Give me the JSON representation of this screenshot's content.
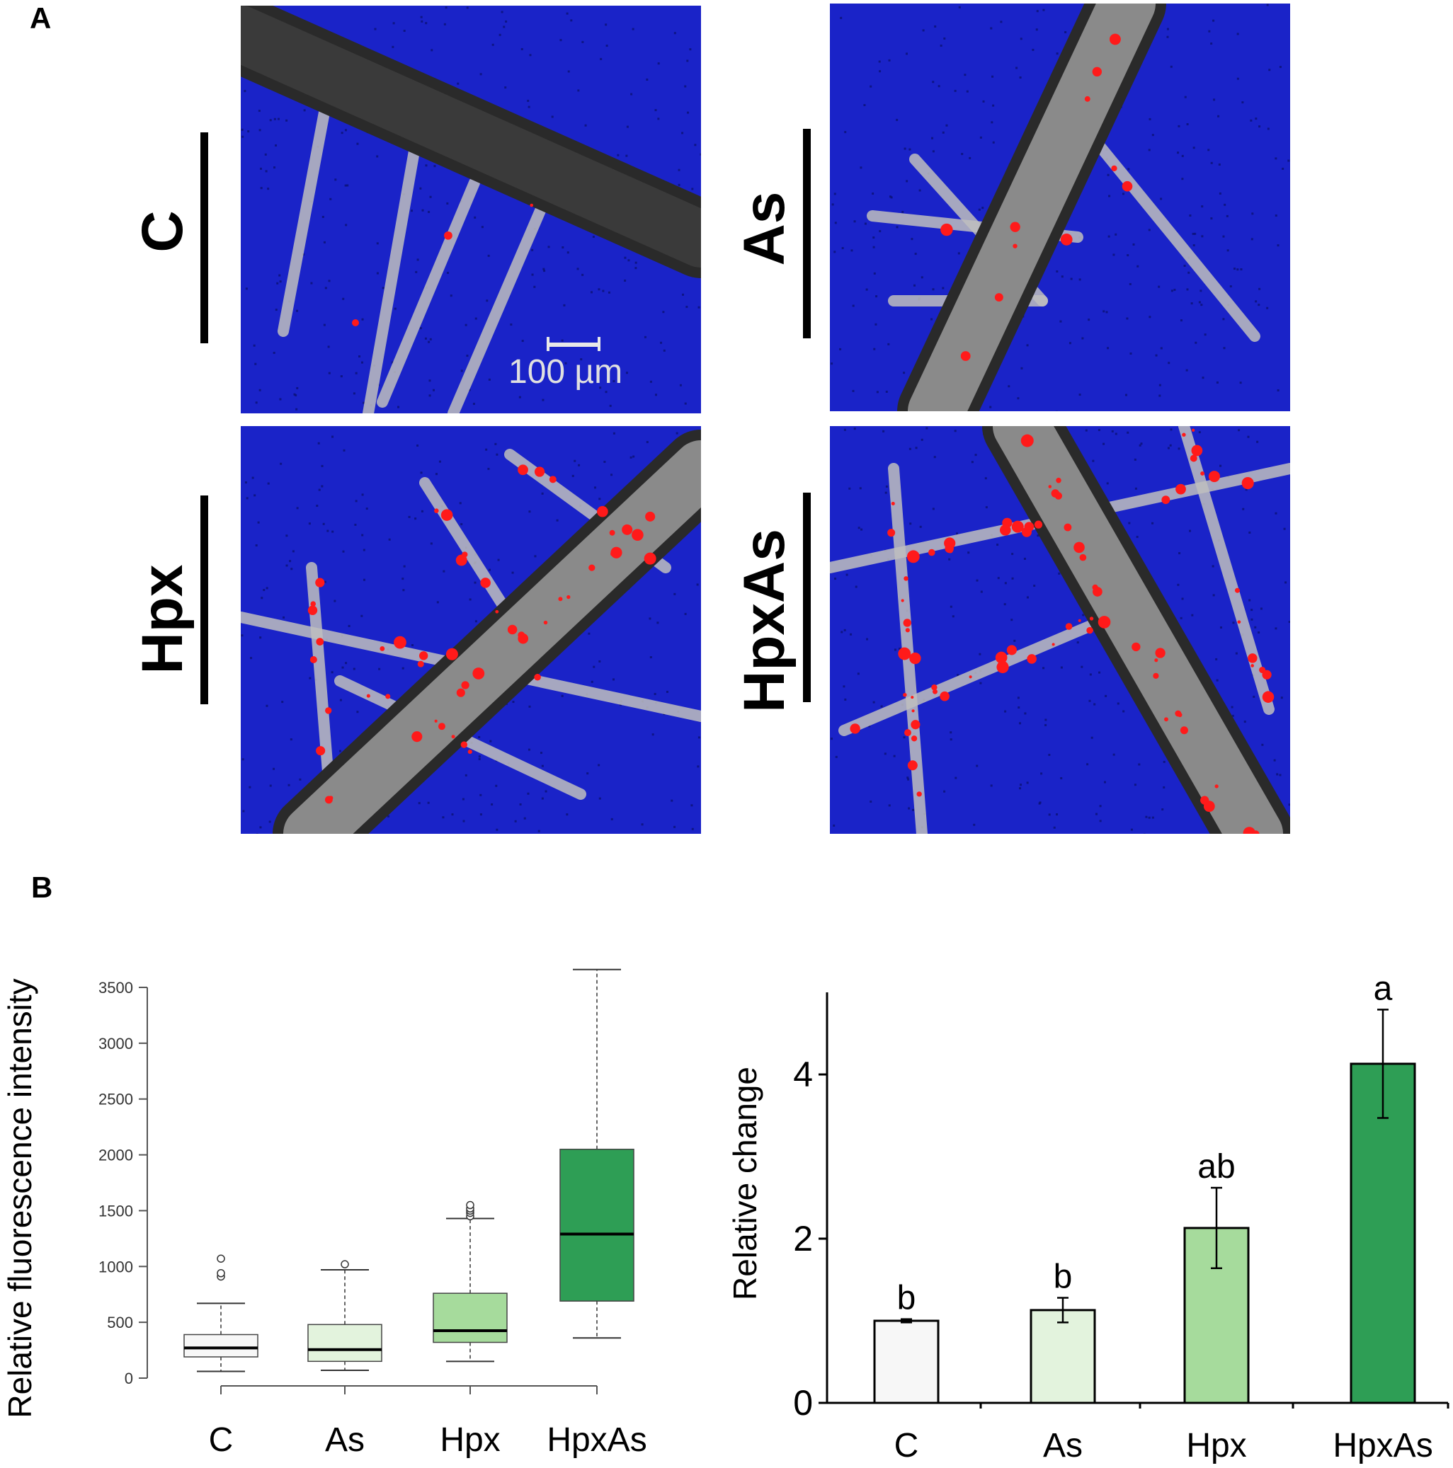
{
  "figure": {
    "panel_a_label": "A",
    "panel_b_label": "B",
    "scale_bar_label": "100 µm",
    "micrographs": [
      {
        "id": "C",
        "label": "C",
        "red_density": 0.02
      },
      {
        "id": "As",
        "label": "As",
        "red_density": 0.12
      },
      {
        "id": "Hpx",
        "label": "Hpx",
        "red_density": 0.55
      },
      {
        "id": "HpxAs",
        "label": "HpxAs",
        "red_density": 0.9
      }
    ],
    "colors": {
      "background_blue": "#1a23c8",
      "root_gray": "#bfbfbf",
      "signal_red": "#ff1a1a"
    }
  },
  "chart_data": [
    {
      "type": "boxplot",
      "title": "",
      "ylabel": "Relative fluorescence intensity",
      "xlabel": "",
      "ylim": [
        0,
        3500
      ],
      "yticks": [
        0,
        500,
        1000,
        1500,
        2000,
        2500,
        3000,
        3500
      ],
      "categories": [
        "C",
        "As",
        "Hpx",
        "HpxAs"
      ],
      "boxes": [
        {
          "name": "C",
          "whisker_low": 60,
          "q1": 190,
          "median": 270,
          "q3": 390,
          "whisker_high": 670,
          "outliers": [
            910,
            940,
            1070
          ],
          "color": "#f7f7f7"
        },
        {
          "name": "As",
          "whisker_low": 70,
          "q1": 150,
          "median": 255,
          "q3": 480,
          "whisker_high": 970,
          "outliers": [
            1020
          ],
          "color": "#e3f3dd"
        },
        {
          "name": "Hpx",
          "whisker_low": 150,
          "q1": 320,
          "median": 425,
          "q3": 760,
          "whisker_high": 1430,
          "outliers": [
            1450,
            1480,
            1500,
            1520,
            1550
          ],
          "color": "#a6db9c"
        },
        {
          "name": "HpxAs",
          "whisker_low": 360,
          "q1": 690,
          "median": 1290,
          "q3": 2050,
          "whisker_high": 3660,
          "outliers": [],
          "color": "#2e9e55"
        }
      ]
    },
    {
      "type": "bar",
      "title": "",
      "ylabel": "Relative change",
      "xlabel": "",
      "ylim": [
        0,
        5
      ],
      "yticks": [
        0,
        2,
        4
      ],
      "categories": [
        "C",
        "As",
        "Hpx",
        "HpxAs"
      ],
      "values": [
        1.0,
        1.13,
        2.13,
        4.13
      ],
      "errors": [
        0.02,
        0.15,
        0.49,
        0.66
      ],
      "significance": [
        "b",
        "b",
        "ab",
        "a"
      ],
      "colors": [
        "#f7f7f7",
        "#e3f3dd",
        "#a6db9c",
        "#2e9e55"
      ]
    }
  ]
}
